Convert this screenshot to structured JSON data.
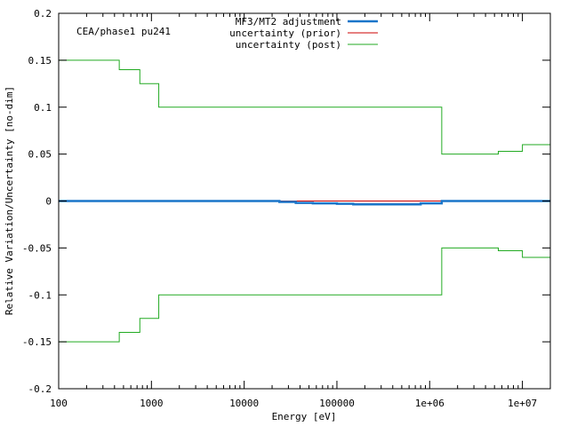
{
  "chart_data": {
    "type": "line",
    "title": "",
    "annotation": "CEA/phase1 pu241",
    "xlabel": "Energy [eV]",
    "ylabel": "Relative Variation/Uncertainty [no-dim]",
    "x_scale": "log",
    "xlim": [
      100,
      20000000
    ],
    "ylim": [
      -0.2,
      0.2
    ],
    "x_ticks": [
      {
        "value": 100,
        "label": "100"
      },
      {
        "value": 1000,
        "label": "1000"
      },
      {
        "value": 10000,
        "label": "10000"
      },
      {
        "value": 100000,
        "label": "100000"
      },
      {
        "value": 1000000,
        "label": "1e+06"
      },
      {
        "value": 10000000,
        "label": "1e+07"
      }
    ],
    "y_ticks": [
      {
        "value": 0.2,
        "label": "0.2"
      },
      {
        "value": 0.15,
        "label": "0.15"
      },
      {
        "value": 0.1,
        "label": "0.1"
      },
      {
        "value": 0.05,
        "label": "0.05"
      },
      {
        "value": 0,
        "label": "0"
      },
      {
        "value": -0.05,
        "label": "-0.05"
      },
      {
        "value": -0.1,
        "label": "-0.1"
      },
      {
        "value": -0.15,
        "label": "-0.15"
      },
      {
        "value": -0.2,
        "label": "-0.2"
      }
    ],
    "grid": false,
    "legend_position": "top-center",
    "series": [
      {
        "name": "MF3/MT2 adjustment",
        "color": "#1a75c9",
        "style": "step",
        "x": [
          100,
          24000,
          36000,
          55000,
          100000,
          150000,
          800000,
          1350000,
          20000000
        ],
        "y": [
          0,
          -0.001,
          -0.002,
          -0.0025,
          -0.003,
          -0.0035,
          -0.0025,
          0,
          0
        ]
      },
      {
        "name": "uncertainty (prior)",
        "color": "#cc0000",
        "style": "step",
        "x": [
          100,
          450,
          750,
          1200,
          1350000,
          5500000,
          10000000,
          20000000
        ],
        "y": [
          0,
          0,
          0,
          0,
          0,
          0,
          0,
          0
        ]
      },
      {
        "name": "uncertainty (post)",
        "color": "#22aa22",
        "style": "step",
        "x": [
          100,
          450,
          750,
          1200,
          1350000,
          5500000,
          10000000,
          20000000
        ],
        "y": [
          0.15,
          0.14,
          0.125,
          0.1,
          0.05,
          0.053,
          0.06,
          0.06
        ]
      },
      {
        "name": "",
        "color": "#22aa22",
        "style": "step",
        "x": [
          100,
          450,
          750,
          1200,
          1350000,
          5500000,
          10000000,
          20000000
        ],
        "y": [
          -0.15,
          -0.14,
          -0.125,
          -0.1,
          -0.05,
          -0.053,
          -0.06,
          -0.06
        ]
      }
    ]
  }
}
